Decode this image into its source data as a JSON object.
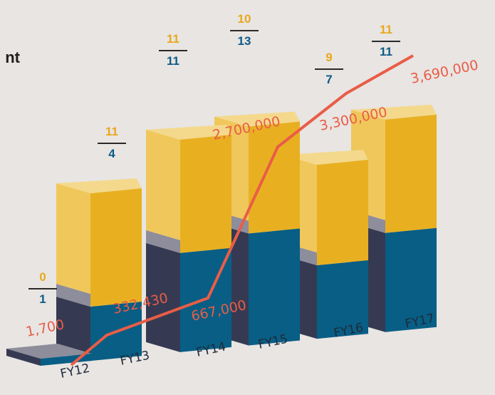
{
  "title_fragment": "nt",
  "colors": {
    "background": "#e8e5e3",
    "yellow_front": "#e8b021",
    "yellow_side": "#f0c75a",
    "yellow_top": "#f4d98d",
    "blue_front": "#085e85",
    "blue_side": "#353a52",
    "gray_side": "#8d8d9c",
    "line": "#e95d47",
    "number_yellow": "#e8a81a",
    "number_blue": "#0d5c85"
  },
  "chart_data": {
    "type": "bar",
    "categories": [
      "FY12",
      "FY13",
      "FY14",
      "FY15",
      "FY16",
      "FY17"
    ],
    "series": [
      {
        "values": [
          0,
          11,
          11,
          10,
          9,
          11
        ]
      },
      {
        "values": [
          1,
          4,
          11,
          13,
          7,
          11
        ]
      },
      {
        "type": "line",
        "values": [
          1700,
          332430,
          667000,
          2700000,
          3300000,
          3690000
        ]
      }
    ],
    "line_labels": [
      "1,700",
      "332,430",
      "667,000",
      "2,700,000",
      "3,300,000",
      "3,690,000"
    ]
  }
}
